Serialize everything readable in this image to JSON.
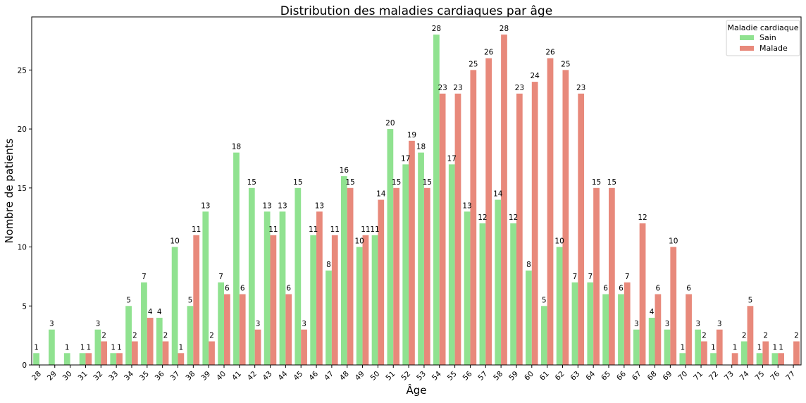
{
  "chart_data": {
    "type": "bar",
    "title": "Distribution des maladies cardiaques par âge",
    "xlabel": "Âge",
    "ylabel": "Nombre de patients",
    "ylim": [
      0,
      29.5
    ],
    "yticks": [
      0,
      5,
      10,
      15,
      20,
      25
    ],
    "grid": false,
    "legend": {
      "title": "Maladie cardiaque",
      "placement": "top-right"
    },
    "categories": [
      "28",
      "29",
      "30",
      "31",
      "32",
      "33",
      "34",
      "35",
      "36",
      "37",
      "38",
      "39",
      "40",
      "41",
      "42",
      "43",
      "44",
      "45",
      "46",
      "47",
      "48",
      "49",
      "50",
      "51",
      "52",
      "53",
      "54",
      "55",
      "56",
      "57",
      "58",
      "59",
      "60",
      "61",
      "62",
      "63",
      "64",
      "65",
      "66",
      "67",
      "68",
      "69",
      "70",
      "71",
      "72",
      "73",
      "74",
      "75",
      "76",
      "77"
    ],
    "series": [
      {
        "name": "Sain",
        "color": "#90e290",
        "values": [
          1,
          3,
          1,
          1,
          3,
          1,
          5,
          7,
          4,
          10,
          5,
          13,
          7,
          18,
          15,
          13,
          13,
          15,
          11,
          8,
          16,
          10,
          11,
          20,
          17,
          18,
          28,
          17,
          13,
          12,
          14,
          12,
          8,
          5,
          10,
          7,
          7,
          6,
          6,
          3,
          4,
          3,
          1,
          3,
          1,
          0,
          2,
          1,
          1,
          0
        ]
      },
      {
        "name": "Malade",
        "color": "#e8897b",
        "values": [
          0,
          0,
          0,
          1,
          2,
          1,
          2,
          4,
          2,
          1,
          11,
          2,
          6,
          6,
          3,
          11,
          6,
          3,
          13,
          11,
          15,
          11,
          14,
          15,
          19,
          15,
          23,
          23,
          25,
          26,
          28,
          23,
          24,
          26,
          25,
          23,
          15,
          15,
          7,
          12,
          6,
          10,
          6,
          2,
          3,
          1,
          5,
          2,
          1,
          2
        ]
      }
    ]
  }
}
